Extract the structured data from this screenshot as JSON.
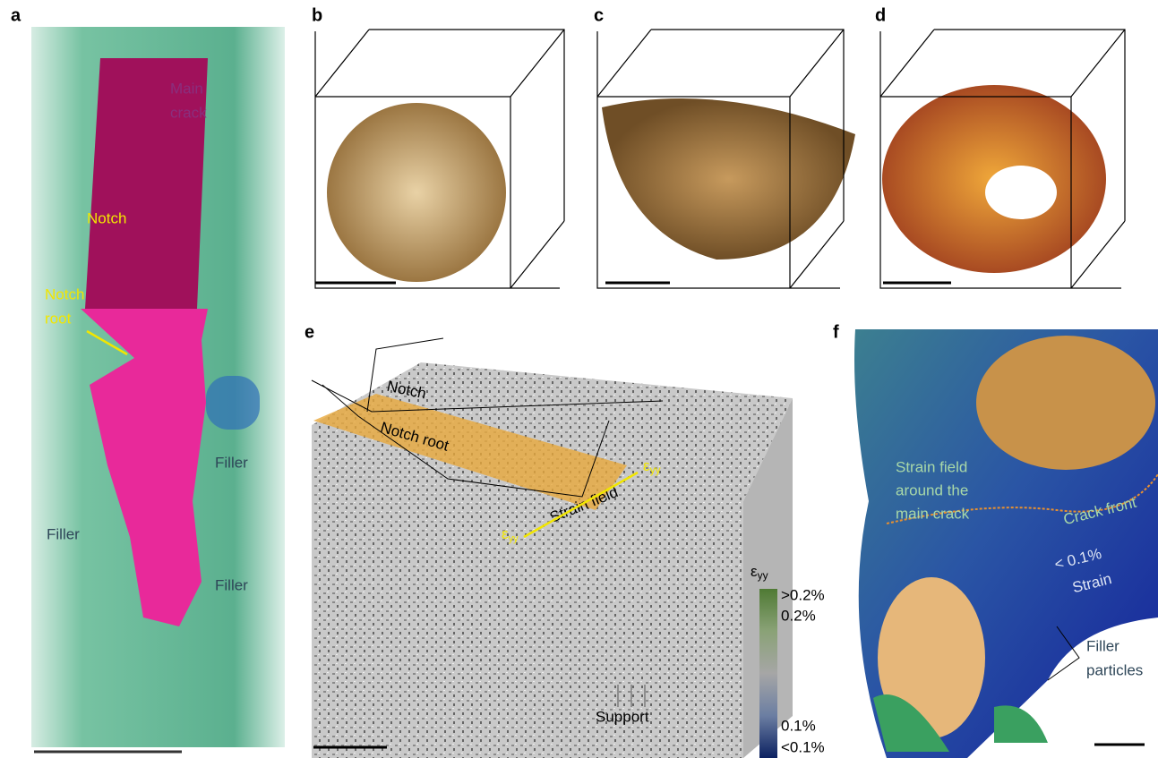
{
  "panels": {
    "a": {
      "label": "a",
      "main_crack": [
        "Main",
        "crack"
      ],
      "notch": "Notch",
      "notch_root": [
        "Notch",
        "root"
      ],
      "filler_labels": [
        "Filler",
        "Filler",
        "Filler"
      ]
    },
    "b": {
      "label": "b"
    },
    "c": {
      "label": "c"
    },
    "d": {
      "label": "d"
    },
    "e": {
      "label": "e",
      "notch": "Notch",
      "notch_root": "Notch root",
      "strain_symbol": {
        "base": "ε",
        "sub": "yy"
      },
      "strain_field": "Strain field",
      "support": "Support",
      "colorbar_labels": [
        ">0.2%",
        "0.2%",
        "0.1%",
        "<0.1%"
      ]
    },
    "f": {
      "label": "f",
      "strain_field_text": [
        "Strain field",
        "around the",
        "main crack"
      ],
      "crack_front": "Crack front",
      "low_strain": [
        "< 0.1%",
        "Strain"
      ],
      "filler_particles": [
        "Filler",
        "particles"
      ]
    }
  }
}
